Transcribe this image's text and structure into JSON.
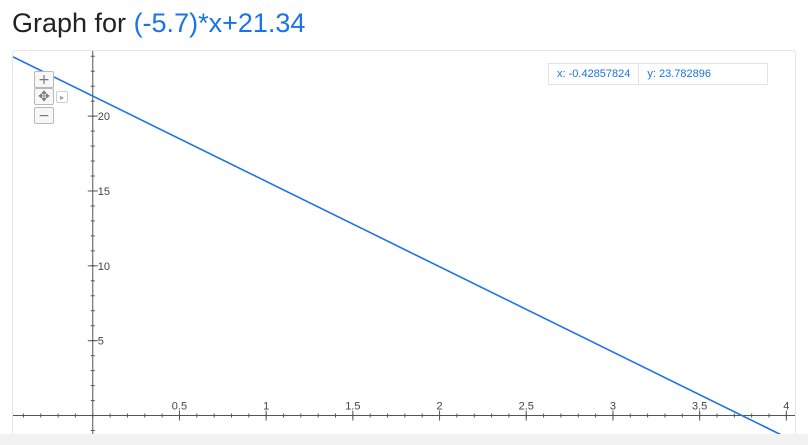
{
  "header": {
    "prefix": "Graph for ",
    "expression": "(-5.7)*x+21.34"
  },
  "readout": {
    "x_text": "x: -0.42857824",
    "y_text": "y: 23.782896"
  },
  "controls": {
    "zoom_in_symbol": "+",
    "pan_symbol": "✥",
    "pan_arrow_symbol": "▸",
    "zoom_out_symbol": "−"
  },
  "colors": {
    "line": "#1a73e8",
    "axis": "#555555"
  },
  "chart_data": {
    "type": "line",
    "function": {
      "slope": -5.7,
      "intercept": 21.34
    },
    "xlim": [
      -0.46,
      4.05
    ],
    "ylim": [
      -1.3,
      24.35
    ],
    "x_ticks": [
      {
        "value": 0.5,
        "label": "0.5"
      },
      {
        "value": 1,
        "label": "1"
      },
      {
        "value": 1.5,
        "label": "1.5"
      },
      {
        "value": 2,
        "label": "2"
      },
      {
        "value": 2.5,
        "label": "2.5"
      },
      {
        "value": 3,
        "label": "3"
      },
      {
        "value": 3.5,
        "label": "3.5"
      },
      {
        "value": 4,
        "label": "4"
      }
    ],
    "y_ticks": [
      {
        "value": 5,
        "label": "5"
      },
      {
        "value": 10,
        "label": "10"
      },
      {
        "value": 15,
        "label": "15"
      },
      {
        "value": 20,
        "label": "20"
      }
    ],
    "grid": false
  }
}
